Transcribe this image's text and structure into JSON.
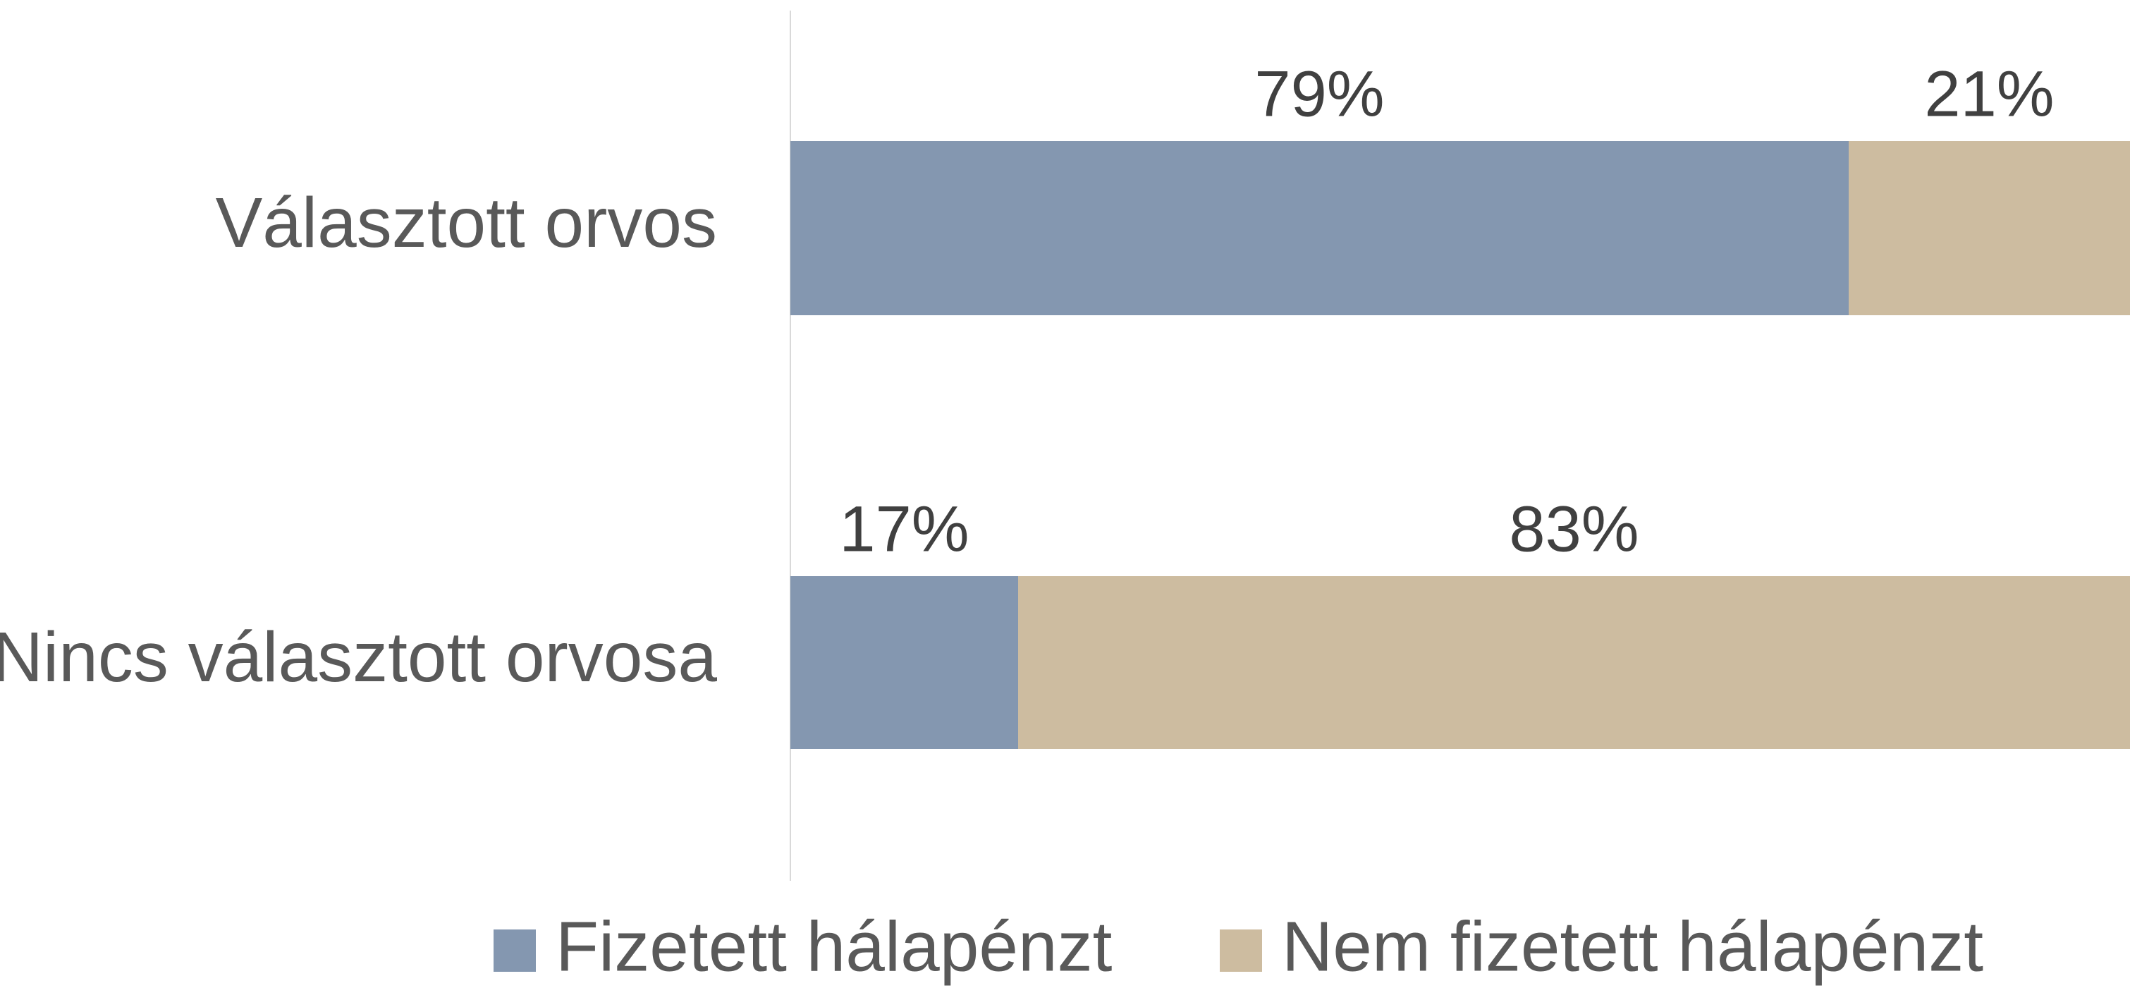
{
  "chart_data": {
    "type": "stacked_barh",
    "categories": [
      "Választott orvos",
      "Nincs választott orvosa"
    ],
    "series": [
      {
        "name": "Fizetett hálapénzt",
        "color": "#8497b0",
        "values": [
          79,
          17
        ],
        "value_labels": [
          "79%",
          "17%"
        ]
      },
      {
        "name": "Nem fizetett hálapénzt",
        "color": "#cdbca0",
        "values": [
          21,
          83
        ],
        "value_labels": [
          "21%",
          "83%"
        ]
      }
    ],
    "xlim": [
      0,
      100
    ],
    "legend": "bottom"
  }
}
